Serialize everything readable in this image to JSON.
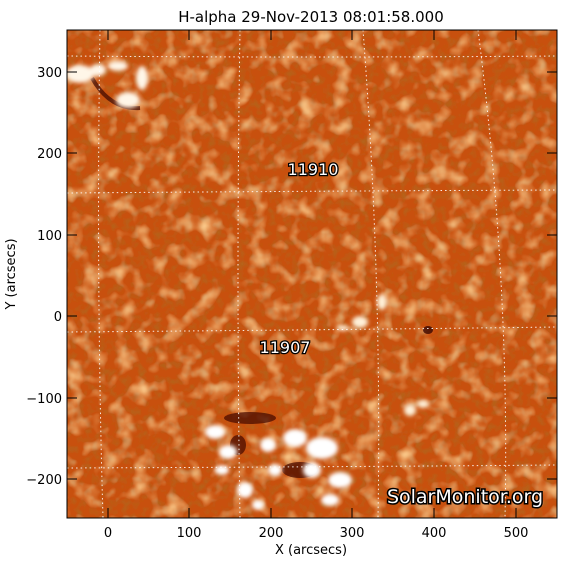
{
  "title": "H-alpha 29-Nov-2013 08:01:58.000",
  "xlabel": "X (arcsecs)",
  "ylabel": "Y (arcsecs)",
  "watermark": "SolarMonitor.org",
  "x_axis": {
    "range": [
      -50,
      550
    ],
    "ticks": [
      "0",
      "100",
      "200",
      "300",
      "400",
      "500"
    ]
  },
  "y_axis": {
    "range": [
      -250,
      350
    ],
    "ticks": [
      "300",
      "200",
      "100",
      "0",
      "−100",
      "−200"
    ]
  },
  "regions": [
    {
      "label": "11910"
    },
    {
      "label": "11907"
    }
  ],
  "colors": {
    "disk_base": "#c8500e",
    "disk_light": "#f08a3a",
    "disk_dark": "#7a1e02",
    "plage": "#ffffff",
    "grid": "#ffffff"
  }
}
